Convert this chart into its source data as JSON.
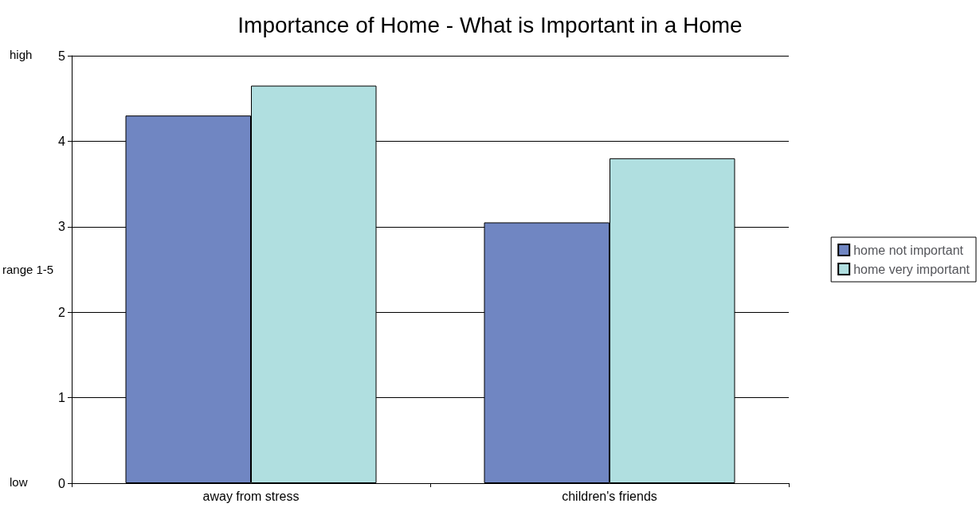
{
  "chart_data": {
    "type": "bar",
    "title": "Importance of Home - What is Important in a Home",
    "ylabel": "range 1-5",
    "categories": [
      "away from stress",
      "children's friends"
    ],
    "series": [
      {
        "name": "home not important",
        "color": "#7086c2",
        "values": [
          4.3,
          3.05
        ]
      },
      {
        "name": "home very important",
        "color": "#b0dfe0",
        "values": [
          4.65,
          3.8
        ]
      }
    ],
    "ylim": [
      0,
      5
    ],
    "yticks": [
      0,
      1,
      2,
      3,
      4,
      5
    ],
    "grid": "y",
    "legend": "right",
    "annotations": [
      "high",
      "low"
    ]
  }
}
